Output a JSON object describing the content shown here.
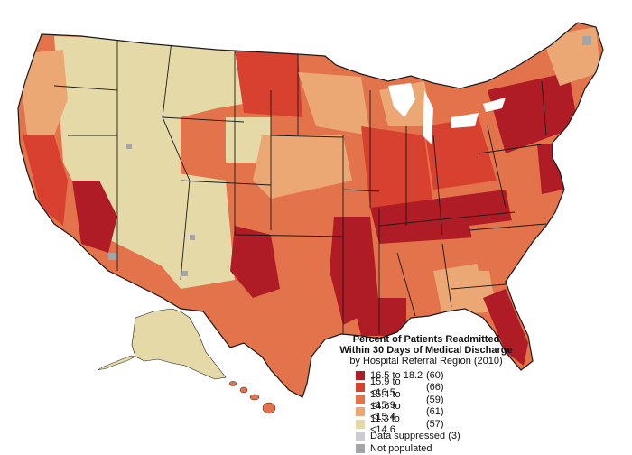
{
  "legend": {
    "title_line1": "Percent of Patients Readmitted",
    "title_line2": "Within 30 Days of Medical Discharge",
    "subtitle": "by Hospital Referral Region (2010)",
    "items": [
      {
        "range": "16.5 to  18.2",
        "count": "(60)",
        "color": "#b01c26"
      },
      {
        "range": "15.9 to <16.5",
        "count": "(66)",
        "color": "#d8402f"
      },
      {
        "range": "15.4 to <15.9",
        "count": "(59)",
        "color": "#e3734a"
      },
      {
        "range": "14.6 to <15.4",
        "count": "(61)",
        "color": "#eba875"
      },
      {
        "range": "11.3 to <14.6",
        "count": "(57)",
        "color": "#e6d9a8"
      },
      {
        "range": "Data suppressed (3)",
        "count": "",
        "color": "#c9cdd1"
      },
      {
        "range": "Not populated",
        "count": "",
        "color": "#a2a6ab"
      }
    ]
  },
  "map": {
    "colors": {
      "lake": "#ffffff",
      "border": "#1a1a1a",
      "darkest": "#b01c26",
      "dark": "#d8402f",
      "mid": "#e3734a",
      "light": "#eba875",
      "lightest": "#e6d9a8",
      "suppressed": "#c9cdd1",
      "unpopulated": "#a2a6ab"
    }
  }
}
